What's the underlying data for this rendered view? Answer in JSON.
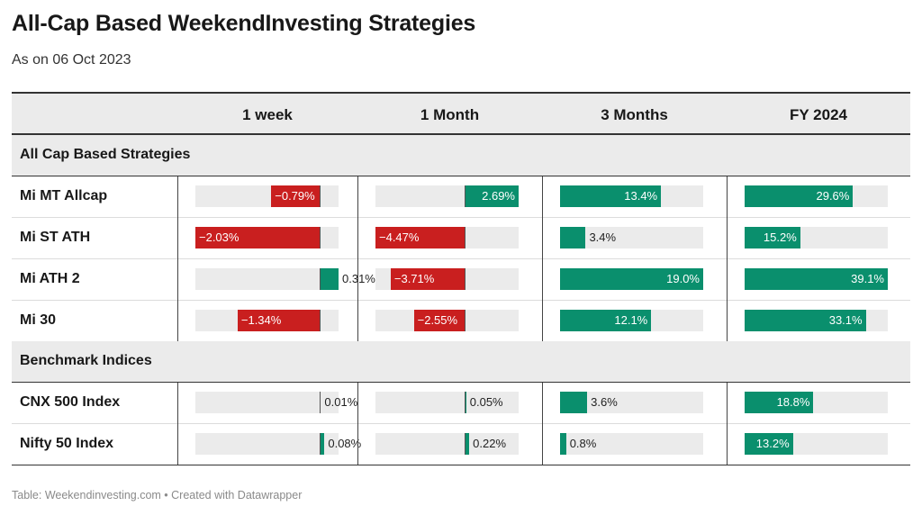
{
  "title": "All-Cap Based WeekendInvesting Strategies",
  "subtitle": "As on 06 Oct 2023",
  "footer": "Table: Weekendinvesting.com • Created with Datawrapper",
  "columns": [
    "",
    "1 week",
    "1 Month",
    "3 Months",
    "FY 2024"
  ],
  "colors": {
    "positive": "#0a8f6d",
    "negative": "#c91f1f",
    "track": "#ebebeb",
    "header_bg": "#ebebeb"
  },
  "chart_data": {
    "type": "table",
    "title": "All-Cap Based WeekendInvesting Strategies",
    "subtitle": "As on 06 Oct 2023",
    "columns": [
      "1 week",
      "1 Month",
      "3 Months",
      "FY 2024"
    ],
    "groups": [
      {
        "name": "All Cap Based Strategies",
        "rows": [
          {
            "label": "Mi MT Allcap",
            "values": [
              -0.79,
              2.69,
              13.4,
              29.6
            ],
            "labels": [
              "−0.79%",
              "2.69%",
              "13.4%",
              "29.6%"
            ]
          },
          {
            "label": "Mi ST ATH",
            "values": [
              -2.03,
              -4.47,
              3.4,
              15.2
            ],
            "labels": [
              "−2.03%",
              "−4.47%",
              "3.4%",
              "15.2%"
            ]
          },
          {
            "label": "Mi ATH 2",
            "values": [
              0.31,
              -3.71,
              19.0,
              39.1
            ],
            "labels": [
              "0.31%",
              "−3.71%",
              "19.0%",
              "39.1%"
            ]
          },
          {
            "label": "Mi 30",
            "values": [
              -1.34,
              -2.55,
              12.1,
              33.1
            ],
            "labels": [
              "−1.34%",
              "−2.55%",
              "12.1%",
              "33.1%"
            ]
          }
        ]
      },
      {
        "name": "Benchmark Indices",
        "rows": [
          {
            "label": "CNX 500 Index",
            "values": [
              0.01,
              0.05,
              3.6,
              18.8
            ],
            "labels": [
              "0.01%",
              "0.05%",
              "3.6%",
              "18.8%"
            ]
          },
          {
            "label": "Nifty 50 Index",
            "values": [
              0.08,
              0.22,
              0.8,
              13.2
            ],
            "labels": [
              "0.08%",
              "0.22%",
              "0.8%",
              "13.2%"
            ]
          }
        ]
      }
    ],
    "column_ranges": [
      [
        -2.03,
        0.31
      ],
      [
        -4.47,
        2.69
      ],
      [
        0,
        19.0
      ],
      [
        0,
        39.1
      ]
    ]
  }
}
